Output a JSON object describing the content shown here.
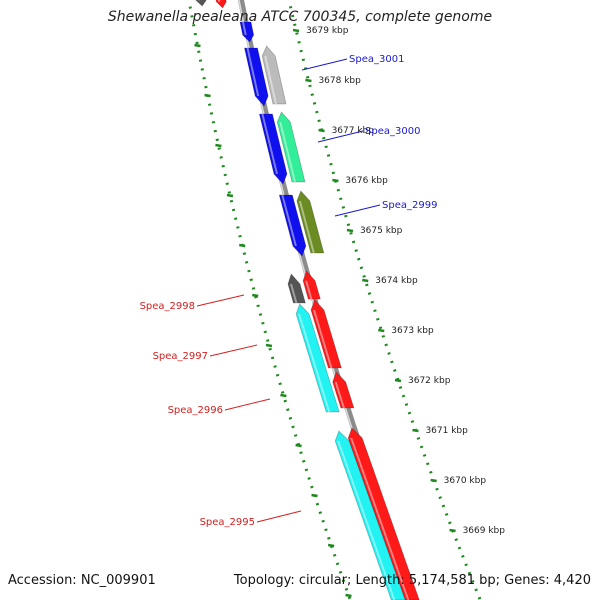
{
  "header": {
    "title": "Shewanella pealeana ATCC 700345, complete genome"
  },
  "footer": {
    "accession": "Accession: NC_009901",
    "summary": "Topology: circular; Length: 5,174,581 bp; Genes: 4,420"
  },
  "colors": {
    "backbone": "#8c8c8c",
    "ruler": "#1e8a1e",
    "label_forward": "#d42020",
    "label_reverse": "#1a1acc",
    "red": "#ff1a1a",
    "blue": "#1010ee",
    "cyan": "#22f2f2",
    "gray_dark": "#555555",
    "gray_light": "#bbbbbb",
    "green": "#33ee99",
    "olive": "#6b8c22"
  },
  "ruler": {
    "unit": "kbp",
    "labels": [
      "3679 kbp",
      "3678 kbp",
      "3677 kbp",
      "3676 kbp",
      "3675 kbp",
      "3674 kbp",
      "3673 kbp",
      "3672 kbp",
      "3671 kbp",
      "3670 kbp",
      "3669 kbp"
    ]
  },
  "genes": [
    {
      "label": "Spea_3001",
      "strand": "reverse"
    },
    {
      "label": "Spea_3000",
      "strand": "reverse"
    },
    {
      "label": "Spea_2999",
      "strand": "reverse"
    },
    {
      "label": "Spea_2998",
      "strand": "forward"
    },
    {
      "label": "Spea_2997",
      "strand": "forward"
    },
    {
      "label": "Spea_2996",
      "strand": "forward"
    },
    {
      "label": "Spea_2995",
      "strand": "forward"
    }
  ]
}
